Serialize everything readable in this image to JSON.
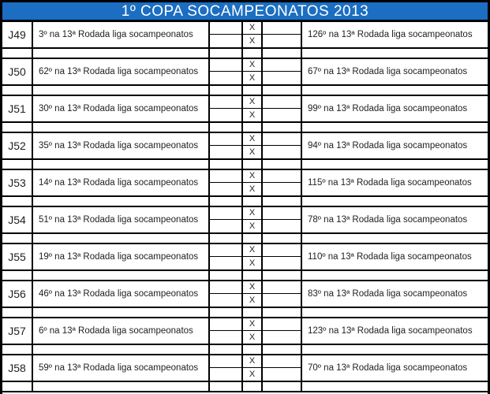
{
  "title": "1º COPA SOCAMPEONATOS 2013",
  "colors": {
    "header_bg": "#1b6ec2",
    "header_text": "#ffffff",
    "grid_line": "#000000",
    "cell_text": "#1f1f1f"
  },
  "rows": [
    {
      "code": "J49",
      "home": "3º na 13ª Rodada liga socampeonatos",
      "away": "126º na 13ª Rodada liga socampeonatos",
      "x_top": "X",
      "x_bottom": "X"
    },
    {
      "code": "J50",
      "home": "62º na 13ª Rodada liga socampeonatos",
      "away": "67º na 13ª Rodada liga socampeonatos",
      "x_top": "X",
      "x_bottom": "X"
    },
    {
      "code": "J51",
      "home": "30º na 13ª Rodada liga socampeonatos",
      "away": "99º na 13ª Rodada liga socampeonatos",
      "x_top": "X",
      "x_bottom": "X"
    },
    {
      "code": "J52",
      "home": "35º na 13ª Rodada liga socampeonatos",
      "away": "94º na 13ª Rodada liga socampeonatos",
      "x_top": "X",
      "x_bottom": "X"
    },
    {
      "code": "J53",
      "home": "14º na 13ª Rodada liga socampeonatos",
      "away": "115º na 13ª Rodada liga socampeonatos",
      "x_top": "X",
      "x_bottom": "X"
    },
    {
      "code": "J54",
      "home": "51º na 13ª Rodada liga socampeonatos",
      "away": "78º na 13ª Rodada liga socampeonatos",
      "x_top": "X",
      "x_bottom": "X"
    },
    {
      "code": "J55",
      "home": "19º na 13ª Rodada liga socampeonatos",
      "away": "110º na 13ª Rodada liga socampeonatos",
      "x_top": "X",
      "x_bottom": "X"
    },
    {
      "code": "J56",
      "home": "46º na 13ª Rodada liga socampeonatos",
      "away": "83º na 13ª Rodada liga socampeonatos",
      "x_top": "X",
      "x_bottom": "X"
    },
    {
      "code": "J57",
      "home": "6º na 13ª Rodada liga socampeonatos",
      "away": "123º na 13ª Rodada liga socampeonatos",
      "x_top": "X",
      "x_bottom": "X"
    },
    {
      "code": "J58",
      "home": "59º na 13ª Rodada liga socampeonatos",
      "away": "70º na 13ª Rodada liga socampeonatos",
      "x_top": "X",
      "x_bottom": "X"
    }
  ]
}
